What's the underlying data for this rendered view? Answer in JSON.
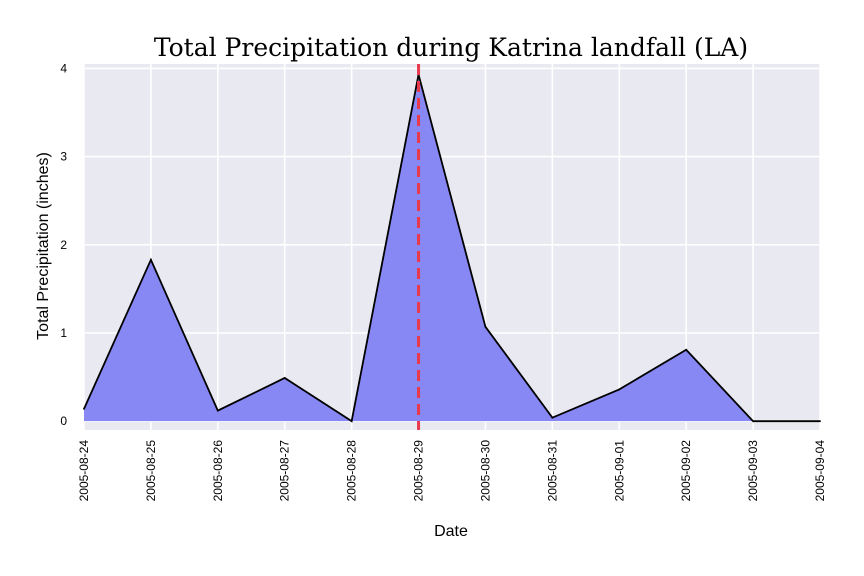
{
  "chart_data": {
    "type": "area",
    "title": "Total Precipitation during Katrina landfall (LA)",
    "xlabel": "Date",
    "ylabel": "Total Precipitation (inches)",
    "x": [
      "2005-08-24",
      "2005-08-25",
      "2005-08-26",
      "2005-08-27",
      "2005-08-28",
      "2005-08-29",
      "2005-08-30",
      "2005-08-31",
      "2005-09-01",
      "2005-09-02",
      "2005-09-03",
      "2005-09-04"
    ],
    "values": [
      0.14,
      1.83,
      0.12,
      0.49,
      0.0,
      3.93,
      1.07,
      0.04,
      0.36,
      0.81,
      0.0,
      0.0
    ],
    "ylim": [
      -0.1,
      4.05
    ],
    "yticks": [
      0,
      1,
      2,
      3,
      4
    ],
    "grid": true,
    "landfall_marker": "2005-08-29",
    "colors": {
      "fill": "#8888f5",
      "line": "#000000",
      "marker": "#e8394d",
      "plot_bg": "#e9e9f1",
      "grid": "#ffffff"
    }
  }
}
